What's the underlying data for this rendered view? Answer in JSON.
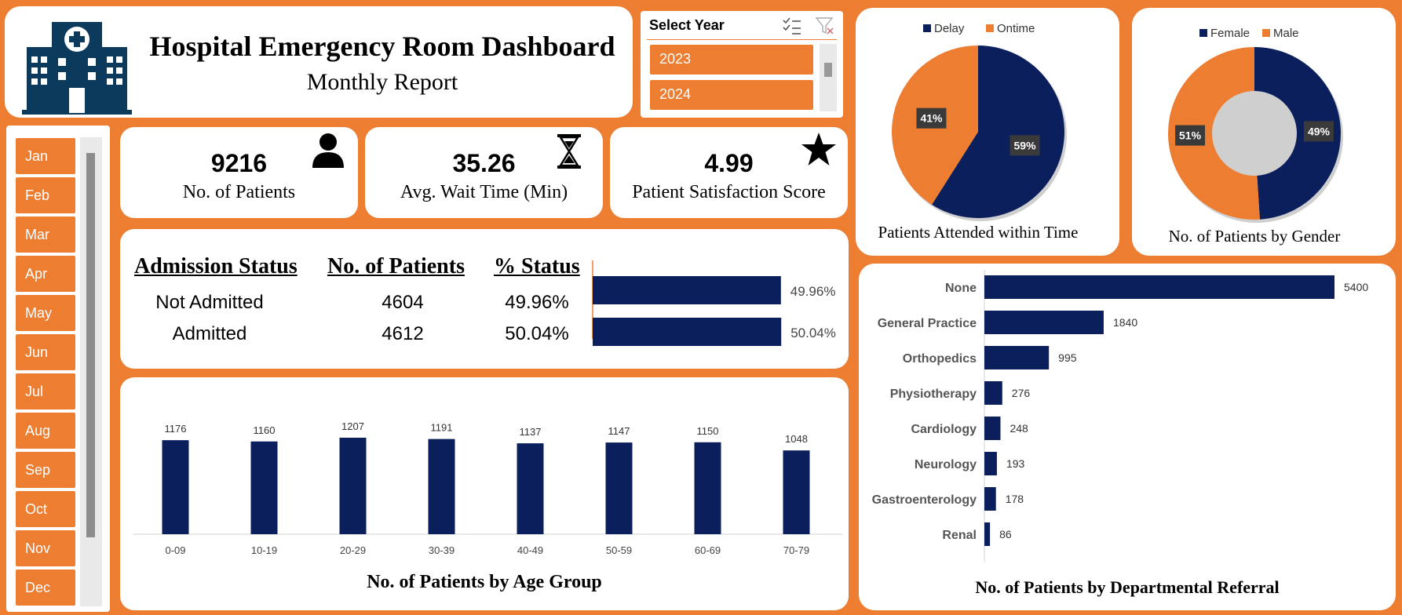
{
  "header": {
    "title": "Hospital Emergency Room Dashboard",
    "subtitle": "Monthly Report"
  },
  "year_slicer": {
    "title": "Select Year",
    "years": [
      "2023",
      "2024"
    ]
  },
  "month_slicer": {
    "months": [
      "Jan",
      "Feb",
      "Mar",
      "Apr",
      "May",
      "Jun",
      "Jul",
      "Aug",
      "Sep",
      "Oct",
      "Nov",
      "Dec"
    ]
  },
  "kpis": [
    {
      "value": "9216",
      "label": "No. of Patients",
      "icon": "person-icon"
    },
    {
      "value": "35.26",
      "label": "Avg. Wait Time (Min)",
      "icon": "hourglass-icon"
    },
    {
      "value": "4.99",
      "label": "Patient Satisfaction Score",
      "icon": "star-icon"
    }
  ],
  "admission": {
    "headers": [
      "Admission Status",
      "No. of Patients",
      "% Status"
    ],
    "rows": [
      {
        "status": "Not Admitted",
        "patients": "4604",
        "pct": "49.96%"
      },
      {
        "status": "Admitted",
        "patients": "4612",
        "pct": "50.04%"
      }
    ]
  },
  "colors": {
    "navy": "#0b1f5c",
    "orange": "#ED7D31",
    "white": "#ffffff"
  },
  "chart_data": [
    {
      "id": "admission",
      "type": "bar",
      "orientation": "horizontal",
      "categories": [
        "Not Admitted",
        "Admitted"
      ],
      "values": [
        49.96,
        50.04
      ],
      "labels": [
        "49.96%",
        "50.04%"
      ]
    },
    {
      "id": "age",
      "type": "bar",
      "title": "No. of Patients by Age Group",
      "categories": [
        "0-09",
        "10-19",
        "20-29",
        "30-39",
        "40-49",
        "50-59",
        "60-69",
        "70-79"
      ],
      "values": [
        1176,
        1160,
        1207,
        1191,
        1137,
        1147,
        1150,
        1048
      ],
      "color": "#0b1f5c"
    },
    {
      "id": "time",
      "type": "pie",
      "title": "Patients Attended within Time",
      "legend": [
        "Delay",
        "Ontime"
      ],
      "values": [
        59,
        41
      ],
      "labels": [
        "59%",
        "41%"
      ],
      "colors": [
        "#0b1f5c",
        "#ED7D31"
      ],
      "legend_position": "top"
    },
    {
      "id": "gender",
      "type": "pie",
      "donut": true,
      "title": "No. of Patients by Gender",
      "legend": [
        "Female",
        "Male"
      ],
      "values": [
        49,
        51
      ],
      "labels": [
        "49%",
        "51%"
      ],
      "colors": [
        "#0b1f5c",
        "#ED7D31"
      ],
      "legend_position": "top"
    },
    {
      "id": "referral",
      "type": "bar",
      "orientation": "horizontal",
      "title": "No. of Patients by Departmental Referral",
      "categories": [
        "None",
        "General Practice",
        "Orthopedics",
        "Physiotherapy",
        "Cardiology",
        "Neurology",
        "Gastroenterology",
        "Renal"
      ],
      "values": [
        5400,
        1840,
        995,
        276,
        248,
        193,
        178,
        86
      ],
      "color": "#0b1f5c"
    }
  ]
}
